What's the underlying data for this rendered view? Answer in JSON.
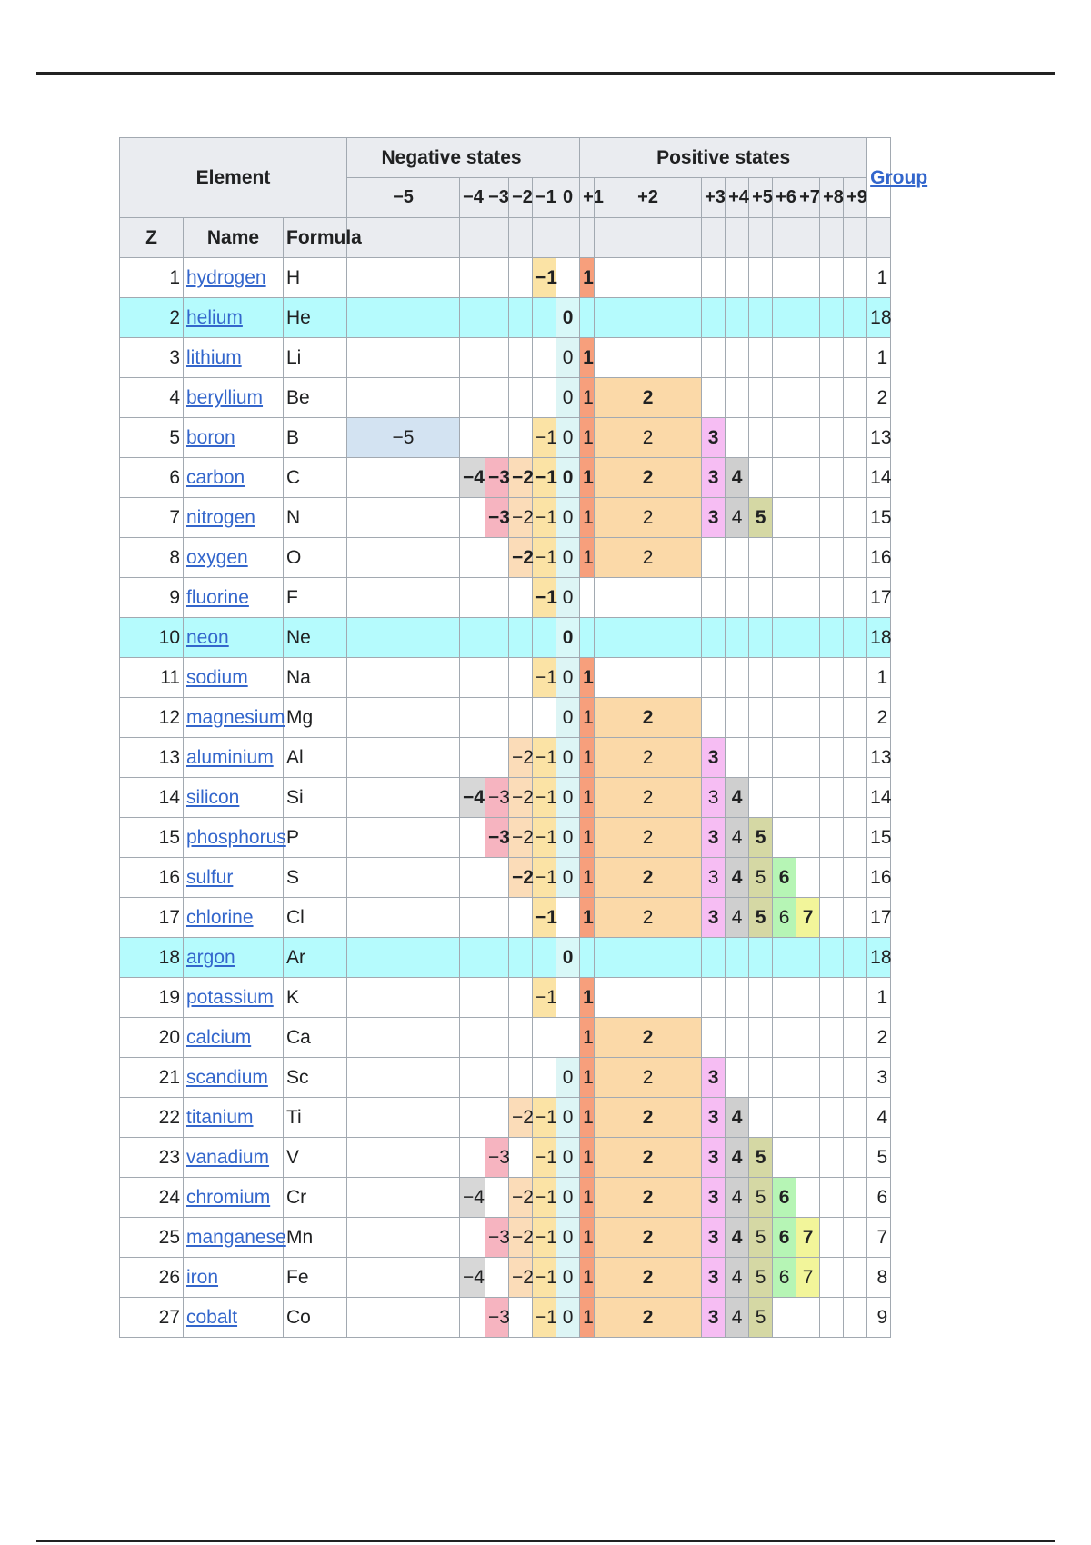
{
  "header": {
    "element": "Element",
    "negative_states": "Negative states",
    "positive_states": "Positive states",
    "group": "Group",
    "z": "Z",
    "name": "Name",
    "formula": "Formula",
    "state_labels": [
      "−5",
      "−4",
      "−3",
      "−2",
      "−1",
      "0",
      "+1",
      "+2",
      "+3",
      "+4",
      "+5",
      "+6",
      "+7",
      "+8",
      "+9"
    ]
  },
  "state_colors": {
    "-5": "#d3e3f2",
    "-4": "#d7d7d7",
    "-3": "#f6b4c0",
    "-2": "#fbdcb8",
    "-1": "#fbe3a5",
    "0": "#ddf5f5",
    "1": "#f79f7c",
    "2": "#fbd9a8",
    "3": "#f6bdf3",
    "4": "#cfcfcf",
    "5": "#d5d8a4",
    "6": "#b6f5b5",
    "7": "#f2f59a",
    "8": "#cfd6f7",
    "9": "#c9e2b4",
    "noble_row": "#b5fbfd"
  },
  "elements": [
    {
      "z": "1",
      "name": "hydrogen",
      "formula": "H",
      "group": "1",
      "states": {
        "-1": "−1",
        "1": "1"
      },
      "bold": [
        "-1",
        "1"
      ]
    },
    {
      "z": "2",
      "name": "helium",
      "formula": "He",
      "group": "18",
      "noble": true,
      "states": {
        "0": "0"
      },
      "bold": [
        "0"
      ]
    },
    {
      "z": "3",
      "name": "lithium",
      "formula": "Li",
      "group": "1",
      "states": {
        "0": "0",
        "1": "1"
      },
      "bold": [
        "1"
      ]
    },
    {
      "z": "4",
      "name": "beryllium",
      "formula": "Be",
      "group": "2",
      "states": {
        "0": "0",
        "1": "1",
        "2": "2"
      },
      "bold": [
        "2"
      ]
    },
    {
      "z": "5",
      "name": "boron",
      "formula": "B",
      "group": "13",
      "states": {
        "-5": "−5",
        "-1": "−1",
        "0": "0",
        "1": "1",
        "2": "2",
        "3": "3"
      },
      "bold": [
        "3"
      ]
    },
    {
      "z": "6",
      "name": "carbon",
      "formula": "C",
      "group": "14",
      "states": {
        "-4": "−4",
        "-3": "−3",
        "-2": "−2",
        "-1": "−1",
        "0": "0",
        "1": "1",
        "2": "2",
        "3": "3",
        "4": "4"
      },
      "bold": [
        "-4",
        "-3",
        "-2",
        "-1",
        "0",
        "1",
        "2",
        "3",
        "4"
      ]
    },
    {
      "z": "7",
      "name": "nitrogen",
      "formula": "N",
      "group": "15",
      "states": {
        "-3": "−3",
        "-2": "−2",
        "-1": "−1",
        "0": "0",
        "1": "1",
        "2": "2",
        "3": "3",
        "4": "4",
        "5": "5"
      },
      "bold": [
        "-3",
        "3",
        "5"
      ]
    },
    {
      "z": "8",
      "name": "oxygen",
      "formula": "O",
      "group": "16",
      "states": {
        "-2": "−2",
        "-1": "−1",
        "0": "0",
        "1": "1",
        "2": "2"
      },
      "bold": [
        "-2"
      ]
    },
    {
      "z": "9",
      "name": "fluorine",
      "formula": "F",
      "group": "17",
      "states": {
        "-1": "−1",
        "0": "0"
      },
      "bold": [
        "-1"
      ]
    },
    {
      "z": "10",
      "name": "neon",
      "formula": "Ne",
      "group": "18",
      "noble": true,
      "states": {
        "0": "0"
      },
      "bold": [
        "0"
      ]
    },
    {
      "z": "11",
      "name": "sodium",
      "formula": "Na",
      "group": "1",
      "states": {
        "-1": "−1",
        "0": "0",
        "1": "1"
      },
      "bold": [
        "1"
      ]
    },
    {
      "z": "12",
      "name": "magnesium",
      "formula": "Mg",
      "group": "2",
      "states": {
        "0": "0",
        "1": "1",
        "2": "2"
      },
      "bold": [
        "2"
      ]
    },
    {
      "z": "13",
      "name": "aluminium",
      "formula": "Al",
      "group": "13",
      "states": {
        "-2": "−2",
        "-1": "−1",
        "0": "0",
        "1": "1",
        "2": "2",
        "3": "3"
      },
      "bold": [
        "3"
      ]
    },
    {
      "z": "14",
      "name": "silicon",
      "formula": "Si",
      "group": "14",
      "states": {
        "-4": "−4",
        "-3": "−3",
        "-2": "−2",
        "-1": "−1",
        "0": "0",
        "1": "1",
        "2": "2",
        "3": "3",
        "4": "4"
      },
      "bold": [
        "-4",
        "4"
      ]
    },
    {
      "z": "15",
      "name": "phosphorus",
      "formula": "P",
      "group": "15",
      "states": {
        "-3": "−3",
        "-2": "−2",
        "-1": "−1",
        "0": "0",
        "1": "1",
        "2": "2",
        "3": "3",
        "4": "4",
        "5": "5"
      },
      "bold": [
        "-3",
        "3",
        "5"
      ]
    },
    {
      "z": "16",
      "name": "sulfur",
      "formula": "S",
      "group": "16",
      "states": {
        "-2": "−2",
        "-1": "−1",
        "0": "0",
        "1": "1",
        "2": "2",
        "3": "3",
        "4": "4",
        "5": "5",
        "6": "6"
      },
      "bold": [
        "-2",
        "2",
        "4",
        "6"
      ]
    },
    {
      "z": "17",
      "name": "chlorine",
      "formula": "Cl",
      "group": "17",
      "states": {
        "-1": "−1",
        "1": "1",
        "2": "2",
        "3": "3",
        "4": "4",
        "5": "5",
        "6": "6",
        "7": "7"
      },
      "bold": [
        "-1",
        "1",
        "3",
        "5",
        "7"
      ]
    },
    {
      "z": "18",
      "name": "argon",
      "formula": "Ar",
      "group": "18",
      "noble": true,
      "states": {
        "0": "0"
      },
      "bold": [
        "0"
      ]
    },
    {
      "z": "19",
      "name": "potassium",
      "formula": "K",
      "group": "1",
      "states": {
        "-1": "−1",
        "1": "1"
      },
      "bold": [
        "1"
      ]
    },
    {
      "z": "20",
      "name": "calcium",
      "formula": "Ca",
      "group": "2",
      "states": {
        "1": "1",
        "2": "2"
      },
      "bold": [
        "2"
      ]
    },
    {
      "z": "21",
      "name": "scandium",
      "formula": "Sc",
      "group": "3",
      "states": {
        "0": "0",
        "1": "1",
        "2": "2",
        "3": "3"
      },
      "bold": [
        "3"
      ]
    },
    {
      "z": "22",
      "name": "titanium",
      "formula": "Ti",
      "group": "4",
      "states": {
        "-2": "−2",
        "-1": "−1",
        "0": "0",
        "1": "1",
        "2": "2",
        "3": "3",
        "4": "4"
      },
      "bold": [
        "2",
        "3",
        "4"
      ]
    },
    {
      "z": "23",
      "name": "vanadium",
      "formula": "V",
      "group": "5",
      "states": {
        "-3": "−3",
        "-1": "−1",
        "0": "0",
        "1": "1",
        "2": "2",
        "3": "3",
        "4": "4",
        "5": "5"
      },
      "bold": [
        "2",
        "3",
        "4",
        "5"
      ]
    },
    {
      "z": "24",
      "name": "chromium",
      "formula": "Cr",
      "group": "6",
      "states": {
        "-4": "−4",
        "-2": "−2",
        "-1": "−1",
        "0": "0",
        "1": "1",
        "2": "2",
        "3": "3",
        "4": "4",
        "5": "5",
        "6": "6"
      },
      "bold": [
        "2",
        "3",
        "6"
      ]
    },
    {
      "z": "25",
      "name": "manganese",
      "formula": "Mn",
      "group": "7",
      "states": {
        "-3": "−3",
        "-2": "−2",
        "-1": "−1",
        "0": "0",
        "1": "1",
        "2": "2",
        "3": "3",
        "4": "4",
        "5": "5",
        "6": "6",
        "7": "7"
      },
      "bold": [
        "2",
        "3",
        "4",
        "6",
        "7"
      ]
    },
    {
      "z": "26",
      "name": "iron",
      "formula": "Fe",
      "group": "8",
      "states": {
        "-4": "−4",
        "-2": "−2",
        "-1": "−1",
        "0": "0",
        "1": "1",
        "2": "2",
        "3": "3",
        "4": "4",
        "5": "5",
        "6": "6",
        "7": "7"
      },
      "bold": [
        "2",
        "3"
      ]
    },
    {
      "z": "27",
      "name": "cobalt",
      "formula": "Co",
      "group": "9",
      "states": {
        "-3": "−3",
        "-1": "−1",
        "0": "0",
        "1": "1",
        "2": "2",
        "3": "3",
        "4": "4",
        "5": "5"
      },
      "bold": [
        "2",
        "3"
      ]
    }
  ]
}
